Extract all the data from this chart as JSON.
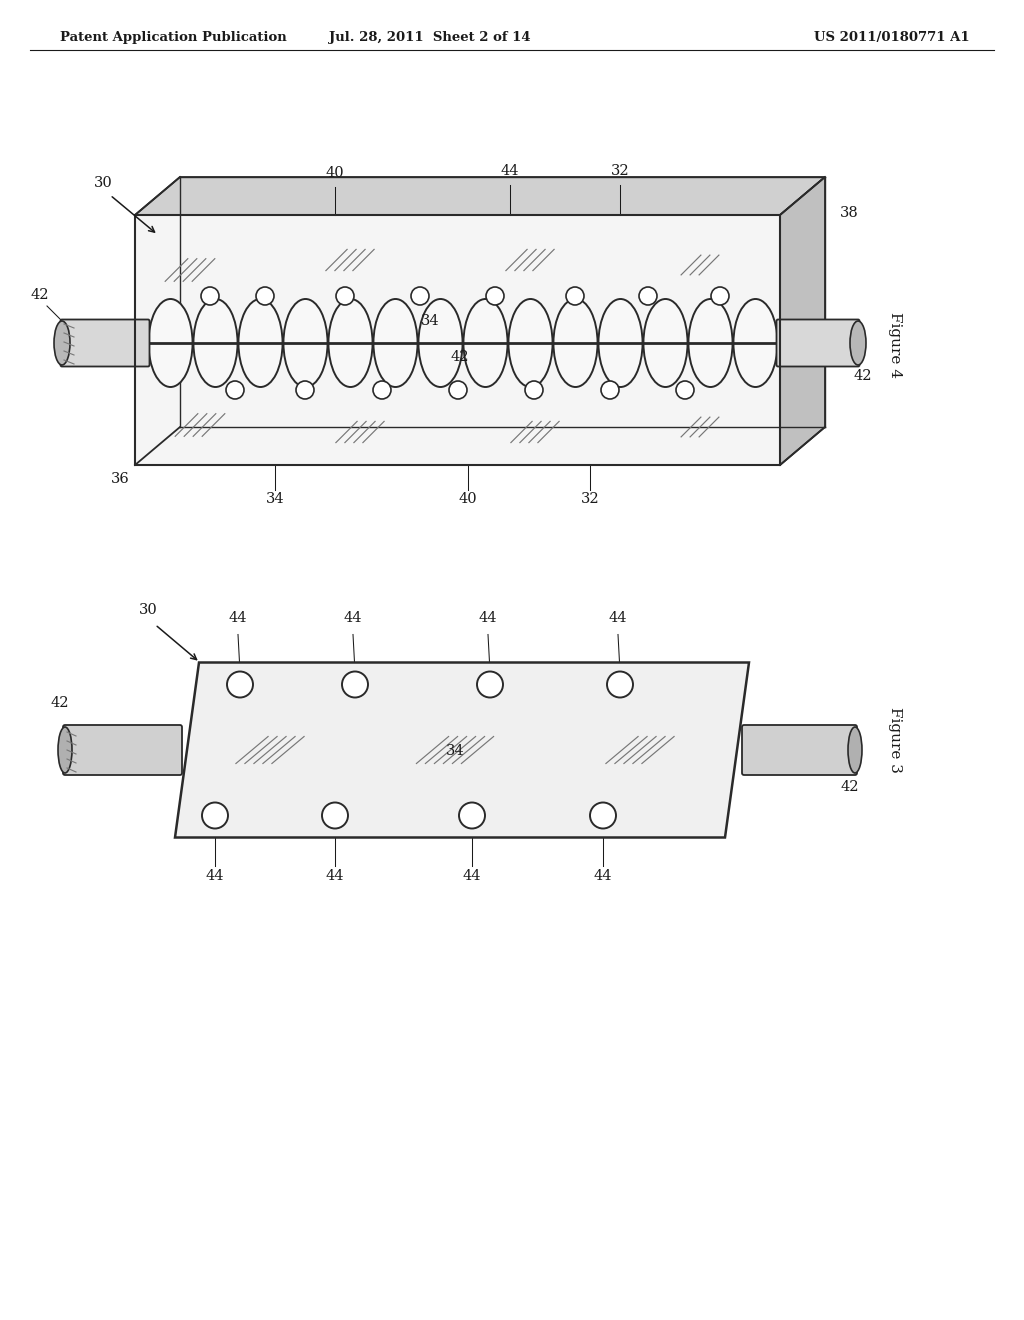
{
  "bg_color": "#ffffff",
  "header_left": "Patent Application Publication",
  "header_mid": "Jul. 28, 2011  Sheet 2 of 14",
  "header_right": "US 2011/0180771 A1",
  "fig4_label": "Figure 4",
  "fig3_label": "Figure 3",
  "line_color": "#2a2a2a",
  "text_color": "#1a1a1a"
}
